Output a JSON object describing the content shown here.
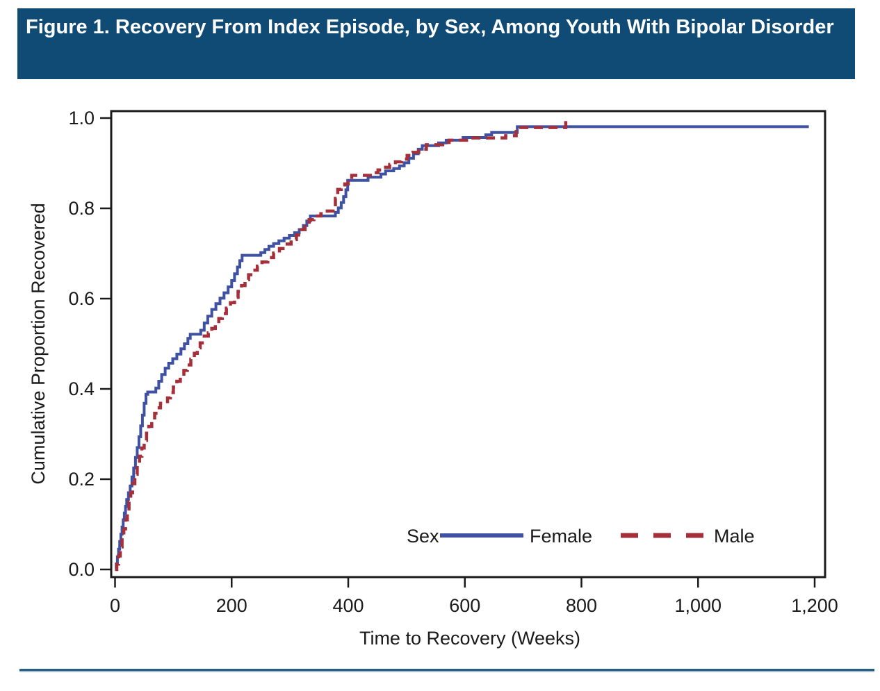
{
  "figure": {
    "title": "Figure 1. Recovery From Index Episode, by Sex, Among Youth With Bipolar Disorder"
  },
  "colors": {
    "title_bar_bg": "#0f4b75",
    "title_text": "#ffffff",
    "female_line": "#3f51a3",
    "male_line": "#a5303a",
    "axis": "#1a1a1a",
    "footer_dark": "#265e85",
    "footer_light": "#a9c0d1"
  },
  "chart_data": {
    "type": "line",
    "subtype": "kaplan-meier-step",
    "title": "",
    "xlabel": "Time to Recovery (Weeks)",
    "ylabel": "Cumulative Proportion Recovered",
    "xlim": [
      0,
      1218
    ],
    "ylim": [
      -0.02,
      1.02
    ],
    "grid": false,
    "legend": {
      "title": "Sex",
      "position": "inside-bottom-right",
      "entries": [
        {
          "label": "Female",
          "style": "solid",
          "color_key": "female_line"
        },
        {
          "label": "Male",
          "style": "dashed",
          "color_key": "male_line"
        }
      ]
    },
    "xticks": {
      "values": [
        0,
        200,
        400,
        600,
        800,
        1000,
        1200
      ],
      "labels": [
        "0",
        "200",
        "400",
        "600",
        "800",
        "1,000",
        "1,200"
      ]
    },
    "yticks": {
      "values": [
        0,
        0.2,
        0.4,
        0.6,
        0.8,
        1.0
      ],
      "labels": [
        "0.0",
        "0.2",
        "0.4",
        "0.6",
        "0.8",
        "1.0"
      ]
    },
    "series": [
      {
        "name": "Female",
        "style": "solid",
        "color_key": "female_line",
        "points": [
          [
            0,
            0
          ],
          [
            2,
            0.012
          ],
          [
            4,
            0.028
          ],
          [
            6,
            0.045
          ],
          [
            8,
            0.062
          ],
          [
            10,
            0.078
          ],
          [
            12,
            0.094
          ],
          [
            14,
            0.11
          ],
          [
            16,
            0.125
          ],
          [
            18,
            0.14
          ],
          [
            20,
            0.155
          ],
          [
            23,
            0.17
          ],
          [
            26,
            0.185
          ],
          [
            29,
            0.205
          ],
          [
            32,
            0.225
          ],
          [
            35,
            0.248
          ],
          [
            38,
            0.27
          ],
          [
            41,
            0.294
          ],
          [
            44,
            0.318
          ],
          [
            47,
            0.342
          ],
          [
            50,
            0.368
          ],
          [
            53,
            0.388
          ],
          [
            56,
            0.393
          ],
          [
            70,
            0.402
          ],
          [
            75,
            0.417
          ],
          [
            80,
            0.432
          ],
          [
            86,
            0.446
          ],
          [
            92,
            0.457
          ],
          [
            99,
            0.467
          ],
          [
            106,
            0.477
          ],
          [
            113,
            0.489
          ],
          [
            119,
            0.5
          ],
          [
            125,
            0.512
          ],
          [
            129,
            0.521
          ],
          [
            147,
            0.53
          ],
          [
            153,
            0.546
          ],
          [
            159,
            0.561
          ],
          [
            166,
            0.576
          ],
          [
            173,
            0.589
          ],
          [
            180,
            0.601
          ],
          [
            187,
            0.613
          ],
          [
            194,
            0.626
          ],
          [
            200,
            0.64
          ],
          [
            205,
            0.655
          ],
          [
            210,
            0.67
          ],
          [
            214,
            0.684
          ],
          [
            218,
            0.696
          ],
          [
            250,
            0.702
          ],
          [
            257,
            0.709
          ],
          [
            264,
            0.716
          ],
          [
            272,
            0.722
          ],
          [
            281,
            0.728
          ],
          [
            290,
            0.734
          ],
          [
            299,
            0.74
          ],
          [
            308,
            0.746
          ],
          [
            316,
            0.753
          ],
          [
            323,
            0.762
          ],
          [
            329,
            0.772
          ],
          [
            335,
            0.783
          ],
          [
            378,
            0.791
          ],
          [
            383,
            0.801
          ],
          [
            388,
            0.813
          ],
          [
            392,
            0.826
          ],
          [
            396,
            0.841
          ],
          [
            399,
            0.862
          ],
          [
            434,
            0.869
          ],
          [
            456,
            0.876
          ],
          [
            464,
            0.883
          ],
          [
            478,
            0.888
          ],
          [
            488,
            0.894
          ],
          [
            496,
            0.901
          ],
          [
            504,
            0.911
          ],
          [
            512,
            0.921
          ],
          [
            520,
            0.931
          ],
          [
            527,
            0.939
          ],
          [
            555,
            0.945
          ],
          [
            568,
            0.951
          ],
          [
            597,
            0.957
          ],
          [
            636,
            0.963
          ],
          [
            646,
            0.968
          ],
          [
            690,
            0.981
          ],
          [
            1190,
            0.981
          ]
        ]
      },
      {
        "name": "Male",
        "style": "dashed",
        "color_key": "male_line",
        "points": [
          [
            0,
            0
          ],
          [
            3,
            0.012
          ],
          [
            6,
            0.03
          ],
          [
            9,
            0.05
          ],
          [
            12,
            0.07
          ],
          [
            15,
            0.09
          ],
          [
            18,
            0.11
          ],
          [
            21,
            0.13
          ],
          [
            24,
            0.15
          ],
          [
            27,
            0.17
          ],
          [
            30,
            0.19
          ],
          [
            34,
            0.211
          ],
          [
            38,
            0.231
          ],
          [
            42,
            0.251
          ],
          [
            46,
            0.269
          ],
          [
            50,
            0.286
          ],
          [
            54,
            0.302
          ],
          [
            58,
            0.317
          ],
          [
            63,
            0.332
          ],
          [
            68,
            0.346
          ],
          [
            73,
            0.358
          ],
          [
            78,
            0.368
          ],
          [
            90,
            0.38
          ],
          [
            95,
            0.392
          ],
          [
            100,
            0.404
          ],
          [
            106,
            0.417
          ],
          [
            112,
            0.429
          ],
          [
            118,
            0.441
          ],
          [
            124,
            0.453
          ],
          [
            130,
            0.466
          ],
          [
            136,
            0.479
          ],
          [
            141,
            0.491
          ],
          [
            146,
            0.502
          ],
          [
            153,
            0.517
          ],
          [
            160,
            0.524
          ],
          [
            166,
            0.534
          ],
          [
            172,
            0.545
          ],
          [
            178,
            0.556
          ],
          [
            184,
            0.567
          ],
          [
            191,
            0.579
          ],
          [
            198,
            0.591
          ],
          [
            205,
            0.603
          ],
          [
            211,
            0.616
          ],
          [
            217,
            0.629
          ],
          [
            223,
            0.642
          ],
          [
            229,
            0.653
          ],
          [
            236,
            0.663
          ],
          [
            244,
            0.672
          ],
          [
            252,
            0.681
          ],
          [
            262,
            0.691
          ],
          [
            272,
            0.701
          ],
          [
            282,
            0.711
          ],
          [
            292,
            0.721
          ],
          [
            302,
            0.731
          ],
          [
            311,
            0.741
          ],
          [
            319,
            0.753
          ],
          [
            326,
            0.764
          ],
          [
            333,
            0.775
          ],
          [
            341,
            0.783
          ],
          [
            353,
            0.788
          ],
          [
            364,
            0.794
          ],
          [
            374,
            0.802
          ],
          [
            378,
            0.822
          ],
          [
            382,
            0.842
          ],
          [
            388,
            0.848
          ],
          [
            394,
            0.854
          ],
          [
            400,
            0.861
          ],
          [
            406,
            0.873
          ],
          [
            441,
            0.879
          ],
          [
            451,
            0.885
          ],
          [
            461,
            0.891
          ],
          [
            471,
            0.897
          ],
          [
            481,
            0.903
          ],
          [
            491,
            0.909
          ],
          [
            501,
            0.917
          ],
          [
            511,
            0.924
          ],
          [
            521,
            0.931
          ],
          [
            534,
            0.941
          ],
          [
            562,
            0.946
          ],
          [
            573,
            0.951
          ],
          [
            607,
            0.956
          ],
          [
            670,
            0.961
          ],
          [
            688,
            0.979
          ],
          [
            768,
            0.979
          ],
          [
            773,
            1.0
          ]
        ]
      }
    ]
  }
}
